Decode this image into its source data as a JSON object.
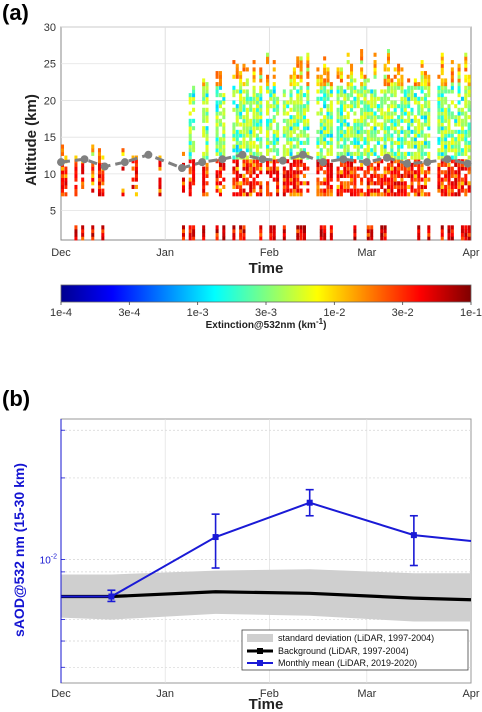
{
  "colors": {
    "background_line": "#000000",
    "monthly_mean": "#1a1ad6",
    "std_band": "#cfcfcf",
    "tropopause": "#808080",
    "axis_blue": "#1414d2"
  },
  "chart_data": [
    {
      "type": "heatmap",
      "panel_label": "(a)",
      "xlabel": "Time",
      "ylabel": "Altitude (km)",
      "x_tick_labels": [
        "Dec",
        "Jan",
        "Feb",
        "Mar",
        "Apr"
      ],
      "y_tick_labels": [
        "5",
        "10",
        "15",
        "20",
        "25",
        "30"
      ],
      "y_ticks": [
        5,
        10,
        15,
        20,
        25,
        30
      ],
      "ylim": [
        1,
        30
      ],
      "xlim_days": [
        0,
        122
      ],
      "month_start_days": [
        0,
        31,
        62,
        91,
        122
      ],
      "colorbar": {
        "title": "Extinction@532nm (km",
        "title_sup": "-1",
        "title_close": ")",
        "tick_labels": [
          "1e-4",
          "3e-4",
          "1e-3",
          "3e-3",
          "1e-2",
          "3e-2",
          "1e-1"
        ],
        "scale": "log",
        "range": [
          0.0001,
          0.1
        ]
      },
      "tropopause_series": {
        "x_dates": [
          "2019-12-01",
          "2019-12-08",
          "2019-12-14",
          "2019-12-20",
          "2019-12-27",
          "2020-01-06",
          "2020-01-12",
          "2020-01-18",
          "2020-01-24",
          "2020-01-30",
          "2020-02-05",
          "2020-02-11",
          "2020-02-17",
          "2020-02-23",
          "2020-03-01",
          "2020-03-07",
          "2020-03-13",
          "2020-03-19",
          "2020-03-25",
          "2020-03-31"
        ],
        "altitude_km": [
          11.6,
          12.0,
          11.0,
          11.6,
          12.6,
          10.8,
          11.6,
          12.0,
          12.6,
          12.0,
          11.8,
          12.6,
          11.6,
          12.0,
          11.6,
          12.2,
          11.4,
          11.6,
          12.0,
          11.4
        ]
      }
    },
    {
      "type": "line",
      "panel_label": "(b)",
      "xlabel": "Time",
      "ylabel": "sAOD@532 nm (15-30 km)",
      "x_tick_labels": [
        "Dec",
        "Jan",
        "Feb",
        "Mar",
        "Apr"
      ],
      "y_tick_label": "10",
      "y_tick_exp": "-2",
      "y_scale": "log",
      "ylim": [
        0.0035,
        0.033
      ],
      "xlim_days": [
        0,
        122
      ],
      "std_band": {
        "name": "standard deviation (LiDAR, 1997-2004)",
        "x_days": [
          0,
          15,
          46,
          74,
          105,
          122
        ],
        "lower": [
          0.0061,
          0.006,
          0.0063,
          0.0062,
          0.0059,
          0.0059
        ],
        "upper": [
          0.0088,
          0.0088,
          0.0091,
          0.0092,
          0.0089,
          0.0089
        ]
      },
      "series": [
        {
          "name": "Background (LiDAR, 1997-2004)",
          "x_days": [
            0,
            15,
            46,
            74,
            105,
            122
          ],
          "values": [
            0.0073,
            0.0073,
            0.0076,
            0.0075,
            0.0072,
            0.0071
          ]
        },
        {
          "name": "Monthly mean (LiDAR, 2019-2020)",
          "x_days": [
            0,
            15,
            46,
            74,
            105,
            122
          ],
          "values": [
            0.0073,
            0.0073,
            0.0121,
            0.0162,
            0.0123,
            0.0117
          ],
          "error_low": [
            null,
            0.007,
            0.0093,
            0.0145,
            0.0095,
            null
          ],
          "error_high": [
            null,
            0.0077,
            0.0147,
            0.0181,
            0.0145,
            null
          ]
        }
      ],
      "legend_position": "bottom-right"
    }
  ]
}
